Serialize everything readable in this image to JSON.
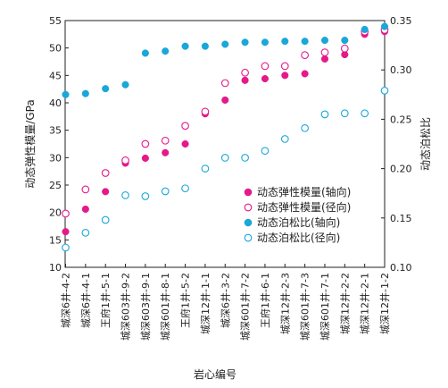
{
  "chart_data": {
    "type": "scatter",
    "xlabel": "岩心编号",
    "ylabel_left": "动态弹性模量/GPa",
    "ylabel_right": "动态泊松比",
    "ylim_left": [
      10,
      55
    ],
    "ylim_right": [
      0.1,
      0.35
    ],
    "yticks_left": [
      10,
      15,
      20,
      25,
      30,
      35,
      40,
      45,
      50,
      55
    ],
    "yticks_right": [
      "0.10",
      "0.15",
      "0.20",
      "0.25",
      "0.30",
      "0.35"
    ],
    "grid": false,
    "legend_position": "bottom-right",
    "categories": [
      "城深6井-4-2",
      "城深6井-4-1",
      "王府1井-5-1",
      "城深603井-9-2",
      "城深603井-9-1",
      "城深601井-8-1",
      "王府1井-5-2",
      "城深12井-1-1",
      "城深6井-3-2",
      "城深601井-7-2",
      "王府1井-6-1",
      "城深12井-2-3",
      "城深601井-7-3",
      "城深601井-7-1",
      "城深12井-2-2",
      "城深12井-2-1",
      "城深12井-1-2"
    ],
    "series": [
      {
        "name": "动态弹性模量(轴向)",
        "axis": "left",
        "marker": "filled",
        "color": "#e5198a",
        "values": [
          16.5,
          20.6,
          23.8,
          29.0,
          29.9,
          30.9,
          32.5,
          38.0,
          40.5,
          44.1,
          44.4,
          45.0,
          45.3,
          48.0,
          48.8,
          52.5,
          53.0
        ]
      },
      {
        "name": "动态弹性模量(径向)",
        "axis": "left",
        "marker": "hollow",
        "color": "#e5198a",
        "values": [
          19.8,
          24.2,
          27.2,
          29.5,
          32.5,
          33.1,
          35.8,
          38.4,
          43.6,
          45.5,
          46.7,
          46.7,
          48.7,
          49.2,
          49.9,
          53.0,
          53.3
        ]
      },
      {
        "name": "动态泊松比(轴向)",
        "axis": "right",
        "marker": "filled",
        "color": "#1aa7d9",
        "values": [
          0.275,
          0.276,
          0.281,
          0.285,
          0.317,
          0.319,
          0.324,
          0.324,
          0.326,
          0.328,
          0.328,
          0.329,
          0.329,
          0.33,
          0.33,
          0.341,
          0.344
        ]
      },
      {
        "name": "动态泊松比(径向)",
        "axis": "right",
        "marker": "hollow",
        "color": "#1aa7d9",
        "values": [
          0.12,
          0.135,
          0.148,
          0.173,
          0.172,
          0.177,
          0.18,
          0.2,
          0.211,
          0.211,
          0.218,
          0.23,
          0.241,
          0.255,
          0.256,
          0.256,
          0.279
        ]
      }
    ]
  }
}
